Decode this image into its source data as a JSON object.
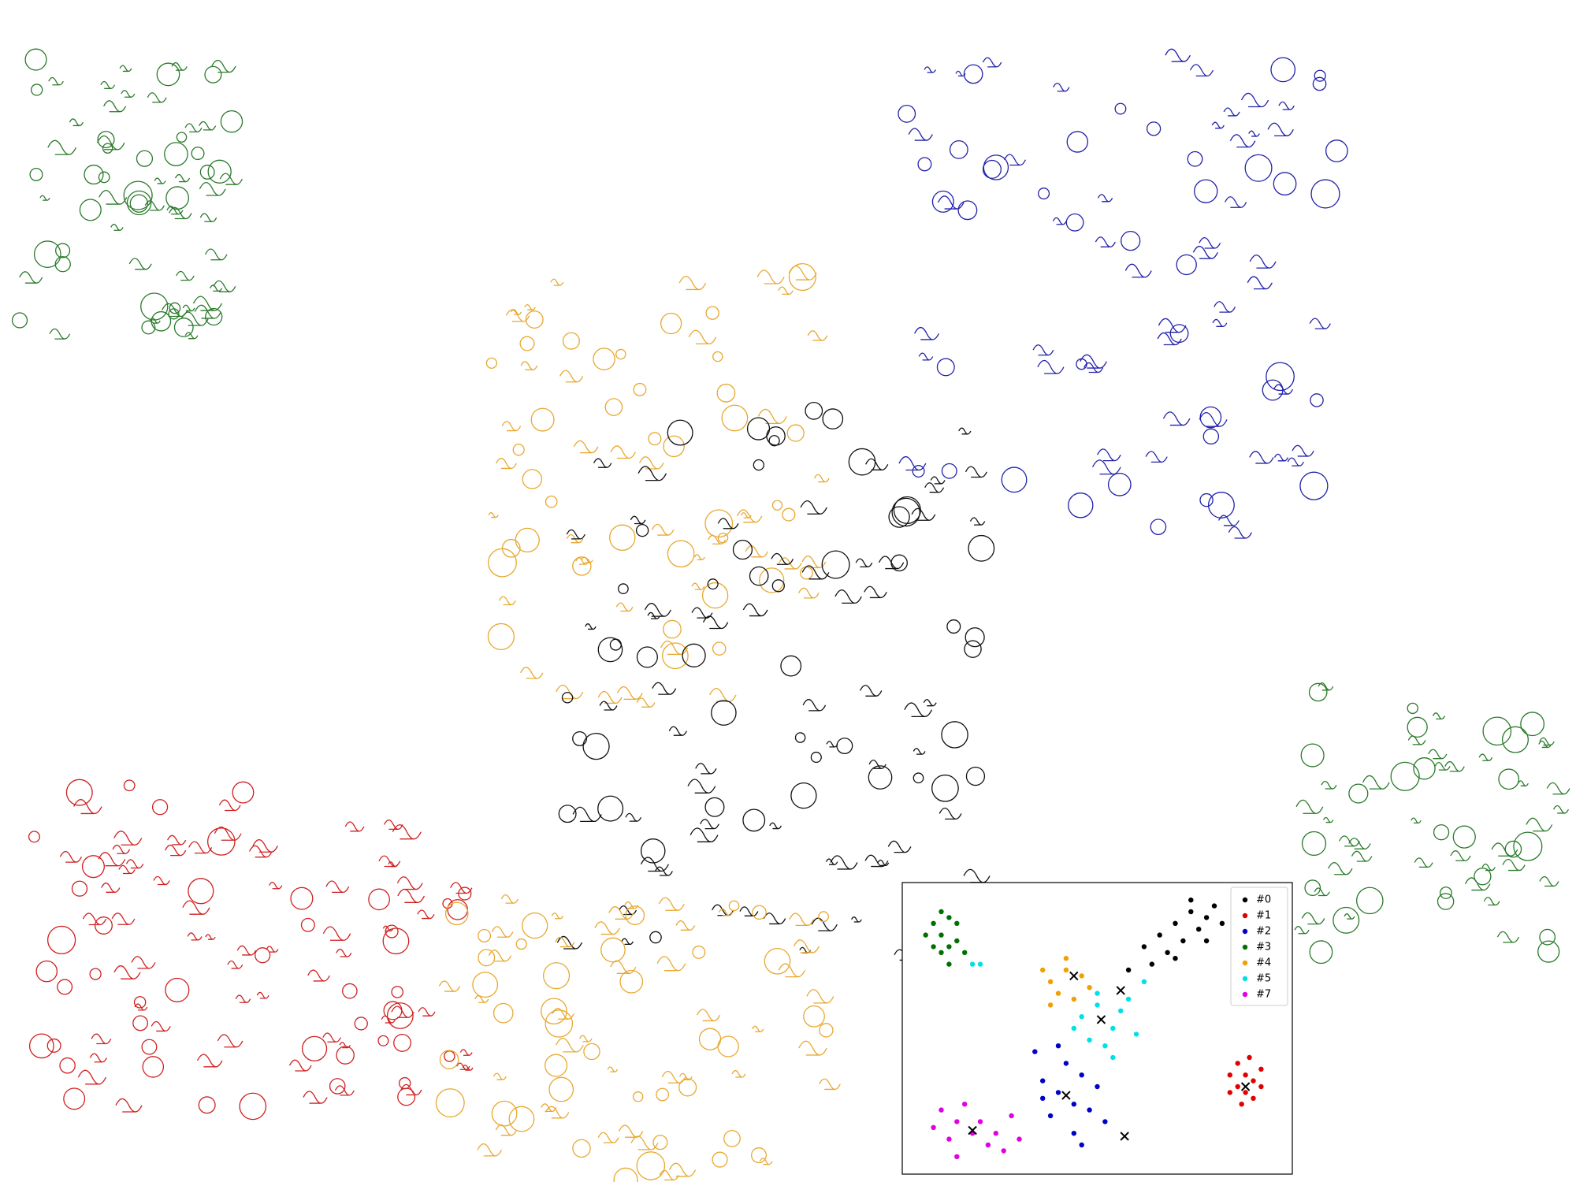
{
  "chart_data": {
    "type": "scatter",
    "legend": "upper right",
    "xlim": [
      0,
      100
    ],
    "ylim": [
      0,
      100
    ],
    "series": [
      {
        "name": "#0",
        "color": "#000000",
        "x": [
          62,
          66,
          70,
          74,
          78,
          72,
          68,
          76,
          80,
          64,
          70,
          82,
          58,
          74,
          78
        ],
        "y": [
          78,
          82,
          86,
          90,
          88,
          80,
          76,
          84,
          92,
          72,
          74,
          86,
          70,
          94,
          80
        ]
      },
      {
        "name": "#1",
        "color": "#e00000",
        "x": [
          84,
          86,
          88,
          90,
          92,
          86,
          90,
          88,
          84,
          92,
          87,
          89
        ],
        "y": [
          34,
          30,
          28,
          32,
          36,
          38,
          26,
          34,
          28,
          30,
          24,
          40
        ]
      },
      {
        "name": "#2",
        "color": "#0000c8",
        "x": [
          36,
          40,
          44,
          46,
          42,
          48,
          38,
          44,
          50,
          34,
          46,
          40,
          52,
          36
        ],
        "y": [
          32,
          28,
          24,
          34,
          38,
          22,
          20,
          14,
          30,
          42,
          10,
          44,
          18,
          26
        ]
      },
      {
        "name": "#3",
        "color": "#007000",
        "x": [
          8,
          10,
          12,
          14,
          10,
          12,
          8,
          14,
          6,
          16,
          10,
          12
        ],
        "y": [
          86,
          82,
          88,
          80,
          76,
          72,
          78,
          86,
          82,
          76,
          90,
          78
        ]
      },
      {
        "name": "#4",
        "color": "#f0a000",
        "x": [
          38,
          42,
          46,
          40,
          44,
          36,
          48,
          42,
          38
        ],
        "y": [
          66,
          70,
          68,
          62,
          60,
          70,
          64,
          74,
          58
        ]
      },
      {
        "name": "#5",
        "color": "#00e0e8",
        "x": [
          46,
          50,
          54,
          52,
          56,
          48,
          58,
          60,
          44,
          54,
          62,
          50,
          18,
          20
        ],
        "y": [
          54,
          58,
          50,
          44,
          56,
          46,
          60,
          48,
          50,
          40,
          66,
          62,
          72,
          72
        ]
      },
      {
        "name": "#7",
        "color": "#e000e0",
        "x": [
          10,
          14,
          18,
          22,
          12,
          16,
          20,
          24,
          8,
          26,
          14,
          30,
          28
        ],
        "y": [
          22,
          18,
          14,
          10,
          12,
          24,
          18,
          14,
          16,
          8,
          6,
          12,
          20
        ]
      }
    ],
    "centroids": {
      "x": [
        44,
        56,
        51,
        42,
        18,
        57,
        88
      ],
      "y": [
        68,
        63,
        53,
        27,
        15,
        13,
        30
      ]
    }
  }
}
